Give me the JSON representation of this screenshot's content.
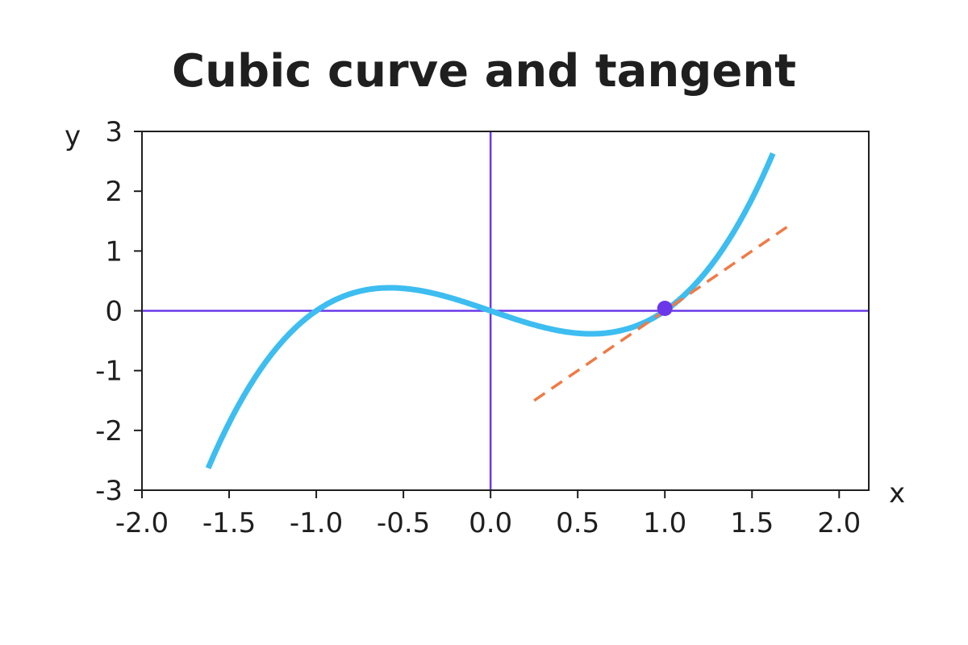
{
  "chart_data": {
    "type": "line",
    "title": "Cubic curve and tangent",
    "xlabel": "x",
    "ylabel": "y",
    "xlim": [
      -2.0,
      2.17
    ],
    "ylim": [
      -3,
      3
    ],
    "x_ticks": [
      "-2.0",
      "-1.5",
      "-1.0",
      "-0.5",
      "0.0",
      "0.5",
      "1.0",
      "1.5",
      "2.0"
    ],
    "y_ticks": [
      "3",
      "2",
      "1",
      "0",
      "-1",
      "-2",
      "-3"
    ],
    "grid": false,
    "series": [
      {
        "function": "y = x^3 - x",
        "x": [
          -1.6,
          -1.4,
          -1.2,
          -1.0,
          -0.8,
          -0.6,
          -0.4,
          -0.2,
          0.0,
          0.2,
          0.4,
          0.6,
          0.8,
          1.0,
          1.2,
          1.4,
          1.6
        ],
        "y": [
          -2.5,
          -1.34,
          -0.53,
          0.0,
          0.29,
          0.38,
          0.34,
          0.19,
          0.0,
          -0.19,
          -0.34,
          -0.38,
          -0.29,
          0.0,
          0.53,
          1.34,
          2.5
        ],
        "color": "#3dbdf0",
        "style": "solid"
      },
      {
        "function": "y = 2x - 2",
        "x": [
          0.25,
          1.7
        ],
        "y": [
          -1.5,
          1.4
        ],
        "color": "#f07a45",
        "style": "dashed"
      }
    ],
    "points": [
      {
        "x": 1.0,
        "y": 0.0,
        "color": "#6a38e8"
      }
    ],
    "reference_lines": {
      "x0": 0,
      "y0": 0,
      "color": "#6a38e8"
    }
  }
}
